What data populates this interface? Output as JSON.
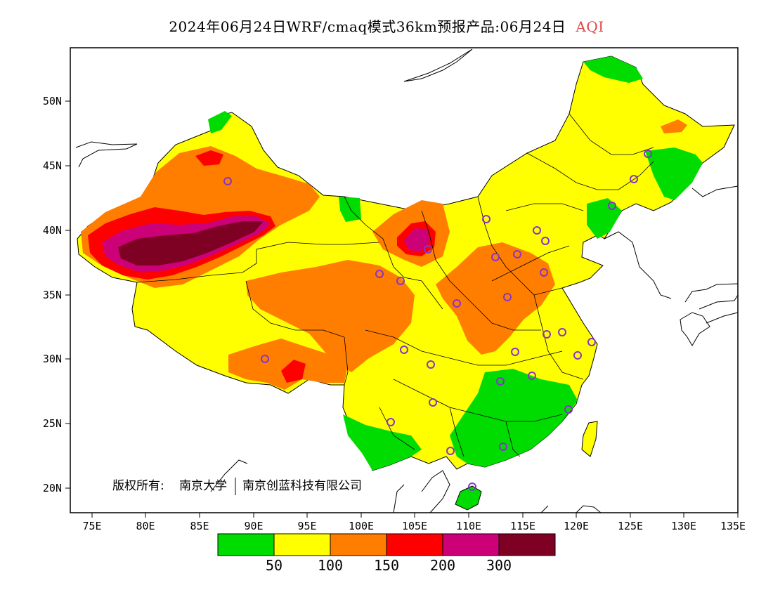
{
  "title": {
    "main": "2024年06月24日WRF/cmaq模式36km预报产品:06月24日",
    "variable": "AQI"
  },
  "axes": {
    "lat_labels": [
      "50N",
      "45N",
      "40N",
      "35N",
      "30N",
      "25N",
      "20N"
    ],
    "lon_labels": [
      "75E",
      "80E",
      "85E",
      "90E",
      "95E",
      "100E",
      "105E",
      "110E",
      "115E",
      "120E",
      "125E",
      "130E",
      "135E"
    ]
  },
  "copyright": {
    "owner_label": "版权所有:",
    "org1": "南京大学",
    "org2": "南京创蓝科技有限公司"
  },
  "colorbar": {
    "colors": [
      "#00dc00",
      "#ffff00",
      "#ff7e00",
      "#ff0000",
      "#cc0077",
      "#7e0023"
    ],
    "labels": [
      "50",
      "100",
      "150",
      "200",
      "300"
    ]
  },
  "legend_colors": {
    "good": "#00dc00",
    "moderate": "#ffff00",
    "usg": "#ff7e00",
    "unhealthy": "#ff0000",
    "very_unhealthy": "#cc0077",
    "hazardous": "#7e0023",
    "station_marker": "#8833cc"
  }
}
